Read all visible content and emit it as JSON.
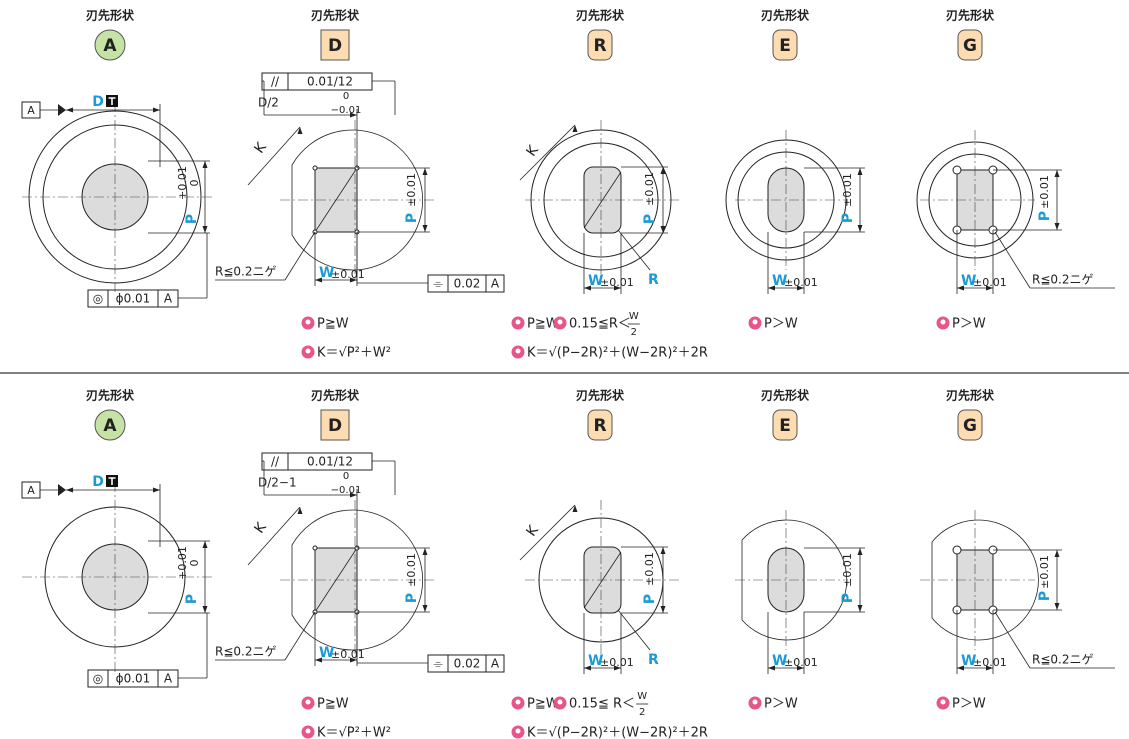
{
  "rows": [
    {
      "panels": [
        {
          "heading": "刃先形状",
          "shape": "A",
          "datum": "A",
          "dim": "D",
          "p": "P",
          "p_upper": "+0.01",
          "p_lower": "0",
          "frame": [
            "◎",
            "ϕ0.01",
            "A"
          ]
        },
        {
          "heading": "刃先形状",
          "shape": "D",
          "parallel": [
            "//",
            "0.01/12"
          ],
          "half": "D/2",
          "half_upper": "0",
          "half_lower": "−0.01",
          "k": "K",
          "p": "P",
          "p_tol": "±0.01",
          "w": "W",
          "w_tol": "±0.01",
          "r_note": "R≦0.2ニゲ",
          "frame": [
            "⌯",
            "0.02",
            "A"
          ],
          "notes": [
            {
              "text": "P≧W"
            },
            {
              "text": "K＝√P²＋W²"
            }
          ]
        },
        {
          "heading": "刃先形状",
          "shape": "R",
          "k": "K",
          "p": "P",
          "p_tol": "±0.01",
          "w": "W",
          "w_tol": "±0.01",
          "r": "R",
          "notes": [
            {
              "text": "P≧W"
            },
            {
              "text": "0.15≦R＜",
              "num": "W",
              "den": "2"
            },
            {
              "text": "K＝√(P−2R)²＋(W−2R)²＋2R"
            }
          ]
        },
        {
          "heading": "刃先形状",
          "shape": "E",
          "p": "P",
          "p_tol": "±0.01",
          "w": "W",
          "w_tol": "±0.01",
          "notes": [
            {
              "text": "P＞W"
            }
          ]
        },
        {
          "heading": "刃先形状",
          "shape": "G",
          "p": "P",
          "p_tol": "±0.01",
          "w": "W",
          "w_tol": "±0.01",
          "r_note": "R≦0.2ニゲ",
          "notes": [
            {
              "text": "P＞W"
            }
          ]
        }
      ]
    },
    {
      "panels": [
        {
          "heading": "刃先形状",
          "shape": "A",
          "datum": "A",
          "dim": "D",
          "p": "P",
          "p_upper": "+0.01",
          "p_lower": "0",
          "frame": [
            "◎",
            "ϕ0.01",
            "A"
          ]
        },
        {
          "heading": "刃先形状",
          "shape": "D",
          "parallel": [
            "//",
            "0.01/12"
          ],
          "half": "D/2−1",
          "half_upper": "0",
          "half_lower": "−0.01",
          "k": "K",
          "p": "P",
          "p_tol": "±0.01",
          "w": "W",
          "w_tol": "±0.01",
          "r_note": "R≦0.2ニゲ",
          "frame": [
            "⌯",
            "0.02",
            "A"
          ],
          "notes": [
            {
              "text": "P≧W"
            },
            {
              "text": "K＝√P²＋W²"
            }
          ]
        },
        {
          "heading": "刃先形状",
          "shape": "R",
          "k": "K",
          "p": "P",
          "p_tol": "±0.01",
          "w": "W",
          "w_tol": "±0.01",
          "r": "R",
          "notes": [
            {
              "text": "P≧W"
            },
            {
              "text": "0.15≦ R＜",
              "num": "W",
              "den": "2"
            },
            {
              "text": "K＝√(P−2R)²＋(W−2R)²＋2R"
            }
          ]
        },
        {
          "heading": "刃先形状",
          "shape": "E",
          "p": "P",
          "p_tol": "±0.01",
          "w": "W",
          "w_tol": "±0.01",
          "notes": [
            {
              "text": "P＞W"
            }
          ]
        },
        {
          "heading": "刃先形状",
          "shape": "G",
          "p": "P",
          "p_tol": "±0.01",
          "w": "W",
          "w_tol": "±0.01",
          "r_note": "R≦0.2ニゲ",
          "notes": [
            {
              "text": "P＞W"
            }
          ]
        }
      ]
    }
  ]
}
